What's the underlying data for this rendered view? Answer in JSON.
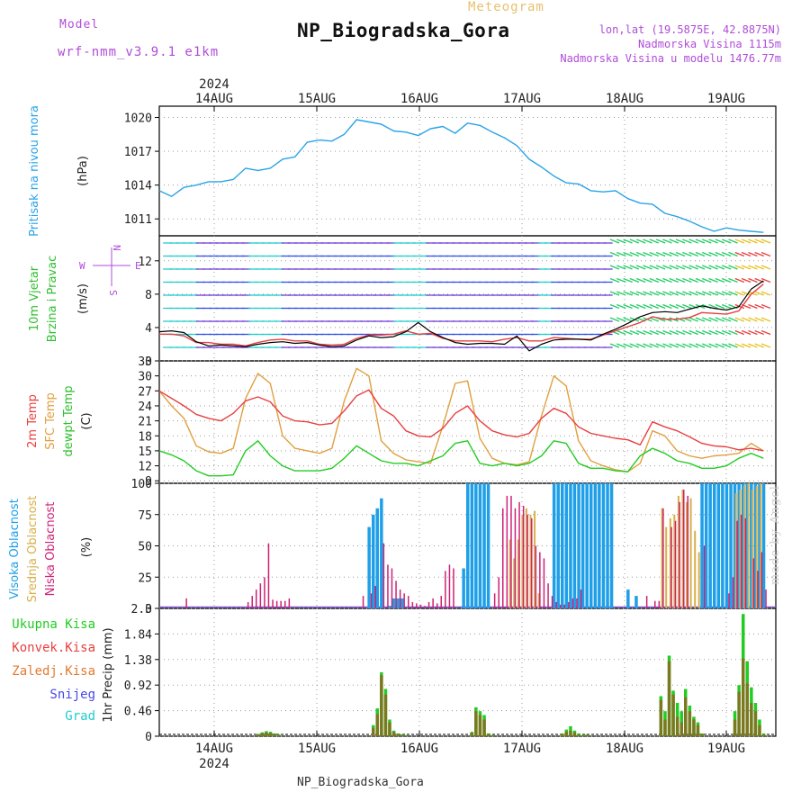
{
  "header": {
    "title": "NP_Biogradska_Gora",
    "subtitle": "Meteogram",
    "model_label": "Model",
    "model_name": "wrf-nmm_v3.9.1 e1km",
    "lonlat": "lon,lat (19.5875E, 42.8875N)",
    "altitude": "Nadmorska Visina 1115m",
    "model_altitude": "Nadmorska Visina u modelu 1476.77m",
    "footer": "NP_Biogradska_Gora",
    "credit": "made by Angel"
  },
  "colors": {
    "pressure": "#2aa3e8",
    "wind_speed_black": "#000000",
    "wind_speed_red": "#e84040",
    "temp2m": "#e84040",
    "sfc_temp": "#e0a040",
    "dewpt": "#22cc22",
    "cloud_high": "#1e9fe8",
    "cloud_mid": "#d7b04a",
    "cloud_low": "#cc2277",
    "precip_total": "#22cc22",
    "precip_conv": "#e84040",
    "precip_grid": "#e07a30",
    "snow": "#4848e8",
    "graupel": "#22cccc",
    "label_purple": "#b04cd8"
  },
  "chart_data": [
    {
      "type": "line",
      "panel": "pressure",
      "ylabel_left": "Pritisak na nivou mora",
      "ylabel_unit": "(hPa)",
      "ylim": [
        1009.5,
        1021
      ],
      "yticks": [
        1011,
        1014,
        1017,
        1020
      ],
      "top_axis": {
        "year": "2024",
        "labels": [
          "14AUG",
          "15AUG",
          "16AUG",
          "17AUG",
          "18AUG",
          "19AUG"
        ]
      },
      "x_hours": [
        0,
        3,
        6,
        9,
        12,
        15,
        18,
        21,
        24,
        27,
        30,
        33,
        36,
        39,
        42,
        45,
        48,
        51,
        54,
        57,
        60,
        63,
        66,
        69,
        72,
        75,
        78,
        81,
        84,
        87,
        90,
        93,
        96,
        99,
        102,
        105,
        108,
        111,
        114,
        117,
        120,
        123,
        126,
        129,
        132,
        135,
        138,
        141,
        144,
        147
      ],
      "values": [
        1013.5,
        1013.0,
        1013.8,
        1014.0,
        1014.3,
        1014.3,
        1014.5,
        1015.5,
        1015.3,
        1015.5,
        1016.3,
        1016.5,
        1017.8,
        1018.0,
        1017.9,
        1018.5,
        1019.8,
        1019.6,
        1019.4,
        1018.8,
        1018.7,
        1018.4,
        1019.0,
        1019.2,
        1018.6,
        1019.5,
        1019.3,
        1018.7,
        1018.2,
        1017.5,
        1016.3,
        1015.6,
        1014.8,
        1014.2,
        1014.1,
        1013.5,
        1013.4,
        1013.5,
        1012.8,
        1012.4,
        1012.3,
        1011.5,
        1011.2,
        1010.8,
        1010.3,
        1009.9,
        1010.2,
        1010.0,
        1009.9,
        1009.8
      ]
    },
    {
      "type": "line",
      "panel": "wind",
      "ylabel_left": [
        "10m Vjetar",
        "Brzina i Pravac"
      ],
      "ylabel_unit": "(m/s)",
      "compass": {
        "n": "N",
        "e": "E",
        "w": "W",
        "s": "S"
      },
      "ylim": [
        0,
        15
      ],
      "yticks": [
        0,
        4,
        8,
        12
      ],
      "x_hours": [
        0,
        3,
        6,
        9,
        12,
        15,
        18,
        21,
        24,
        27,
        30,
        33,
        36,
        39,
        42,
        45,
        48,
        51,
        54,
        57,
        60,
        63,
        66,
        69,
        72,
        75,
        78,
        81,
        84,
        87,
        90,
        93,
        96,
        99,
        102,
        105,
        108,
        111,
        114,
        117,
        120,
        123,
        126,
        129,
        132,
        135,
        138,
        141,
        144,
        147
      ],
      "series": [
        {
          "name": "black",
          "values": [
            3.5,
            3.6,
            3.4,
            2.3,
            1.8,
            1.9,
            1.8,
            1.7,
            2.0,
            2.2,
            2.3,
            2.1,
            2.2,
            1.9,
            1.7,
            1.8,
            2.5,
            3.0,
            2.8,
            2.9,
            3.5,
            4.6,
            3.5,
            2.8,
            2.2,
            2.0,
            2.1,
            2.1,
            2.0,
            3.0,
            1.2,
            2.0,
            2.5,
            2.6,
            2.6,
            2.5,
            3.2,
            3.8,
            4.5,
            5.3,
            5.8,
            5.9,
            5.8,
            6.2,
            6.6,
            6.3,
            6.1,
            6.5,
            8.6,
            9.6
          ]
        },
        {
          "name": "red",
          "values": [
            3.2,
            3.2,
            3.0,
            2.2,
            2.2,
            2.0,
            2.0,
            1.8,
            2.2,
            2.5,
            2.6,
            2.4,
            2.4,
            2.0,
            1.9,
            2.0,
            2.7,
            3.1,
            3.1,
            3.2,
            3.6,
            3.2,
            3.3,
            2.7,
            2.4,
            2.4,
            2.4,
            2.3,
            2.6,
            2.8,
            2.4,
            2.4,
            2.8,
            2.7,
            2.6,
            2.6,
            3.1,
            3.6,
            4.1,
            4.6,
            5.3,
            5.0,
            5.0,
            5.2,
            5.8,
            5.7,
            5.6,
            6.0,
            8.0,
            9.2
          ]
        }
      ]
    },
    {
      "type": "line",
      "panel": "temperature",
      "ylabel_left": [
        "2m Temp",
        "SFC Temp",
        "dewpt Temp"
      ],
      "ylabel_unit": "(C)",
      "ylim": [
        8.5,
        33
      ],
      "yticks": [
        9,
        12,
        15,
        18,
        21,
        24,
        27,
        30,
        33
      ],
      "x_hours": [
        0,
        3,
        6,
        9,
        12,
        15,
        18,
        21,
        24,
        27,
        30,
        33,
        36,
        39,
        42,
        45,
        48,
        51,
        54,
        57,
        60,
        63,
        66,
        69,
        72,
        75,
        78,
        81,
        84,
        87,
        90,
        93,
        96,
        99,
        102,
        105,
        108,
        111,
        114,
        117,
        120,
        123,
        126,
        129,
        132,
        135,
        138,
        141,
        144,
        147
      ],
      "series": [
        {
          "name": "2m Temp",
          "values": [
            27.0,
            25.5,
            24.0,
            22.3,
            21.5,
            21.0,
            22.5,
            25.0,
            25.8,
            24.8,
            22.0,
            21.0,
            20.8,
            20.2,
            20.5,
            23.0,
            26.0,
            27.2,
            23.5,
            22.0,
            19.0,
            18.0,
            17.8,
            19.5,
            22.5,
            24.0,
            21.0,
            19.0,
            18.2,
            17.8,
            18.5,
            21.5,
            23.5,
            22.5,
            19.8,
            18.5,
            18.0,
            17.5,
            17.2,
            16.2,
            20.8,
            19.8,
            19.0,
            17.8,
            16.5,
            16.0,
            15.8,
            15.2,
            15.5,
            15.0
          ]
        },
        {
          "name": "SFC Temp",
          "values": [
            27.0,
            24.0,
            21.5,
            16.0,
            14.8,
            14.5,
            15.5,
            25.5,
            30.5,
            28.5,
            18.0,
            15.5,
            15.0,
            14.5,
            15.5,
            25.0,
            31.5,
            30.0,
            17.0,
            14.5,
            13.2,
            12.8,
            12.5,
            20.0,
            28.5,
            29.0,
            17.5,
            13.5,
            12.5,
            12.2,
            12.8,
            22.0,
            30.0,
            28.0,
            17.0,
            13.0,
            12.0,
            11.2,
            10.8,
            12.5,
            19.0,
            18.0,
            15.0,
            14.0,
            13.5,
            14.0,
            14.2,
            14.5,
            16.5,
            15.0
          ]
        },
        {
          "name": "dewpt Temp",
          "values": [
            15.0,
            14.2,
            13.0,
            11.0,
            10.0,
            10.0,
            10.2,
            15.0,
            17.0,
            14.0,
            12.0,
            11.0,
            11.0,
            11.0,
            11.5,
            13.5,
            16.0,
            14.5,
            13.0,
            12.5,
            12.5,
            12.0,
            13.0,
            14.0,
            16.5,
            17.0,
            12.5,
            12.0,
            12.5,
            12.0,
            12.5,
            14.0,
            17.0,
            16.5,
            12.5,
            11.5,
            11.5,
            11.0,
            10.8,
            14.0,
            15.5,
            14.5,
            13.0,
            12.5,
            11.5,
            11.5,
            12.0,
            13.5,
            14.5,
            13.5
          ]
        }
      ]
    },
    {
      "type": "bar",
      "panel": "clouds",
      "ylabel_left": [
        "Visoka Oblacnost",
        "Srednja Oblacnost",
        "Niska Oblacnost"
      ],
      "ylabel_unit": "(%)",
      "ylim": [
        0,
        100
      ],
      "yticks": [
        0,
        25,
        50,
        75,
        100
      ],
      "high": {
        "x_hours": [
          51,
          52,
          53,
          54,
          56,
          57,
          58,
          59,
          74,
          75,
          76,
          77,
          78,
          79,
          80,
          96,
          97,
          98,
          99,
          100,
          101,
          102,
          103,
          104,
          105,
          106,
          107,
          108,
          109,
          110,
          114,
          116,
          132,
          133,
          134,
          135,
          136,
          137,
          138,
          139,
          140,
          141,
          142,
          143,
          144,
          145,
          146,
          147
        ],
        "values": [
          65,
          75,
          80,
          88,
          2,
          8,
          8,
          8,
          32,
          100,
          100,
          100,
          100,
          100,
          100,
          100,
          100,
          100,
          100,
          100,
          100,
          100,
          100,
          100,
          100,
          100,
          100,
          100,
          100,
          100,
          15,
          10,
          100,
          100,
          100,
          100,
          100,
          100,
          100,
          100,
          100,
          100,
          100,
          100,
          100,
          100,
          100,
          100
        ]
      },
      "mid": {
        "x_hours": [
          85,
          86,
          87,
          88,
          89,
          90,
          91,
          92,
          122,
          123,
          124,
          125,
          126,
          127,
          128,
          129,
          130,
          131,
          140,
          141,
          142,
          143,
          144,
          145,
          146
        ],
        "values": [
          55,
          40,
          55,
          75,
          80,
          75,
          78,
          12,
          80,
          65,
          72,
          75,
          90,
          95,
          85,
          88,
          62,
          45,
          92,
          95,
          98,
          100,
          95,
          98,
          100
        ]
      },
      "low": {
        "x_hours": [
          6,
          21,
          22,
          23,
          24,
          25,
          26,
          27,
          28,
          29,
          30,
          31,
          49,
          51,
          52,
          54,
          55,
          56,
          57,
          58,
          59,
          60,
          61,
          62,
          63,
          64,
          65,
          66,
          67,
          68,
          69,
          70,
          71,
          81,
          82,
          83,
          84,
          85,
          86,
          87,
          88,
          89,
          90,
          91,
          92,
          93,
          94,
          95,
          96,
          97,
          98,
          99,
          100,
          101,
          102,
          118,
          120,
          121,
          122,
          124,
          125,
          126,
          127,
          128,
          132,
          138,
          139,
          140,
          141,
          142,
          144,
          145,
          146,
          147
        ],
        "values": [
          8,
          5,
          10,
          15,
          20,
          25,
          52,
          7,
          6,
          6,
          6,
          8,
          10,
          12,
          18,
          52,
          35,
          32,
          22,
          15,
          12,
          10,
          5,
          4,
          3,
          2,
          5,
          8,
          4,
          10,
          30,
          35,
          32,
          12,
          25,
          80,
          90,
          90,
          80,
          85,
          82,
          75,
          72,
          50,
          45,
          40,
          20,
          10,
          5,
          3,
          3,
          5,
          8,
          8,
          15,
          10,
          6,
          6,
          80,
          65,
          70,
          85,
          95,
          90,
          50,
          12,
          25,
          70,
          75,
          72,
          40,
          30,
          45,
          15
        ]
      }
    },
    {
      "type": "bar",
      "panel": "precip",
      "ylabel_left": [
        "Ukupna Kisa",
        "Konvek.Kisa",
        "Zaledj.Kisa",
        "Snijeg",
        "Grad"
      ],
      "ylabel_unit": "1hr Precip (mm)",
      "ylim": [
        0,
        2.3
      ],
      "yticks": [
        0,
        0.46,
        0.92,
        1.38,
        1.84,
        2.3
      ],
      "bottom_axis": {
        "year": "2024",
        "labels": [
          "14AUG",
          "15AUG",
          "16AUG",
          "17AUG",
          "18AUG",
          "19AUG"
        ]
      },
      "x_hours": [
        24,
        25,
        26,
        27,
        28,
        29,
        52,
        53,
        54,
        55,
        56,
        57,
        58,
        59,
        60,
        76,
        77,
        78,
        79,
        80,
        81,
        98,
        99,
        100,
        101,
        102,
        103,
        104,
        122,
        123,
        124,
        125,
        126,
        127,
        128,
        129,
        130,
        131,
        132,
        140,
        141,
        142,
        143,
        144,
        145,
        146,
        147
      ],
      "total": [
        0.04,
        0.07,
        0.09,
        0.08,
        0.05,
        0.03,
        0.2,
        0.5,
        1.15,
        0.85,
        0.3,
        0.1,
        0.05,
        0.03,
        0.02,
        0.08,
        0.52,
        0.45,
        0.38,
        0.05,
        0.02,
        0.05,
        0.12,
        0.18,
        0.1,
        0.05,
        0.02,
        0.03,
        0.72,
        0.45,
        1.45,
        0.82,
        0.6,
        0.45,
        0.85,
        0.55,
        0.35,
        0.25,
        0.05,
        0.45,
        0.92,
        2.2,
        1.35,
        0.88,
        0.6,
        0.3,
        0.05
      ],
      "conv": [
        0.03,
        0.06,
        0.07,
        0.06,
        0.04,
        0.02,
        0.15,
        0.4,
        1.1,
        0.75,
        0.25,
        0.08,
        0.04,
        0.02,
        0.01,
        0.06,
        0.45,
        0.38,
        0.3,
        0.04,
        0.01,
        0.04,
        0.08,
        0.1,
        0.07,
        0.03,
        0.01,
        0.02,
        0.65,
        0.3,
        1.35,
        0.75,
        0.35,
        0.25,
        0.7,
        0.45,
        0.3,
        0.2,
        0.04,
        0.3,
        0.8,
        1.4,
        0.95,
        0.6,
        0.45,
        0.2,
        0.03
      ]
    }
  ]
}
